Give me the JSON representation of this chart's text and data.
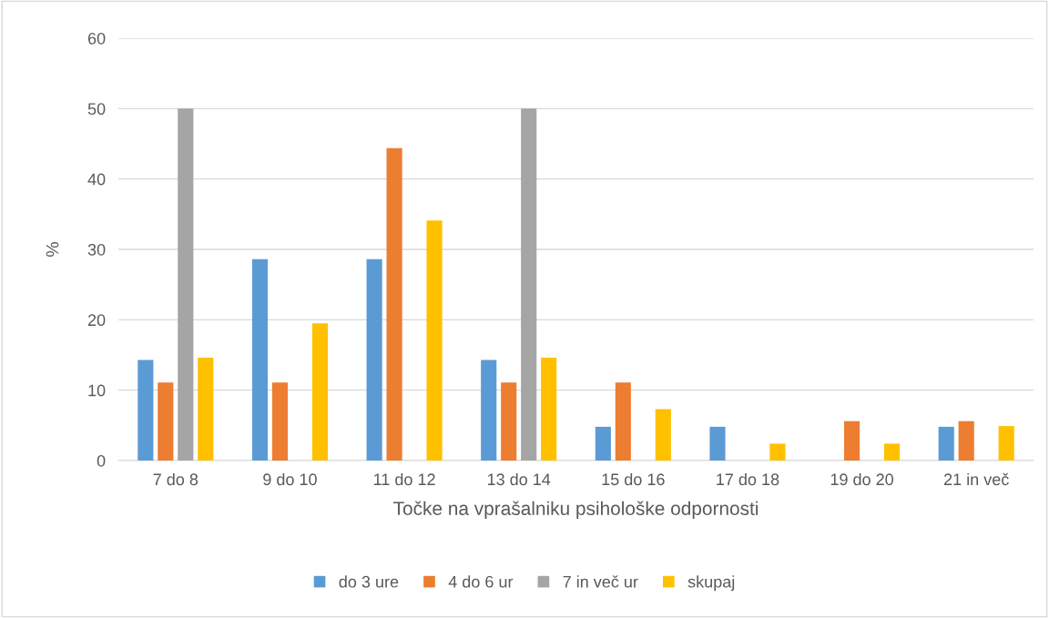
{
  "chart_data": {
    "type": "bar",
    "xlabel": "Točke na vprašalniku psihološke odpornosti",
    "ylabel": "%",
    "categories": [
      "7 do 8",
      "9 do 10",
      "11 do 12",
      "13 do 14",
      "15 do 16",
      "17 do 18",
      "19 do 20",
      "21 in več"
    ],
    "series": [
      {
        "name": "do 3 ure",
        "color": "#5b9bd5",
        "values": [
          14.3,
          28.6,
          28.6,
          14.3,
          4.8,
          4.8,
          0,
          4.8
        ]
      },
      {
        "name": "4 do 6 ur",
        "color": "#ed7d31",
        "values": [
          11.1,
          11.1,
          44.4,
          11.1,
          11.1,
          0,
          5.6,
          5.6
        ]
      },
      {
        "name": "7 in več ur",
        "color": "#a5a5a5",
        "values": [
          50,
          0,
          0,
          50,
          0,
          0,
          0,
          0
        ]
      },
      {
        "name": "skupaj",
        "color": "#ffc000",
        "values": [
          14.6,
          19.5,
          34.1,
          14.6,
          7.3,
          2.4,
          2.4,
          4.9
        ]
      }
    ],
    "ylim": [
      0,
      60
    ],
    "yticks": [
      0,
      10,
      20,
      30,
      40,
      50,
      60
    ],
    "grid": "y",
    "legend": "bottom"
  }
}
